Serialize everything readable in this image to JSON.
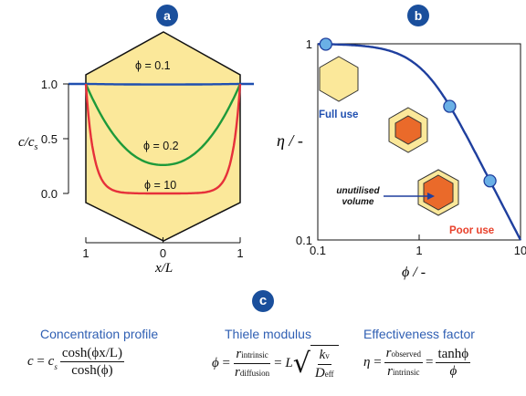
{
  "panels": {
    "a_label": "a",
    "b_label": "b",
    "c_label": "c"
  },
  "chart_data": [
    {
      "type": "line",
      "panel": "a",
      "xlabel": "x/L",
      "ylabel": "c/c_s",
      "ylabel_main": "c/c",
      "ylabel_sub": "s",
      "xlim": [
        -1,
        1
      ],
      "ylim": [
        0,
        1
      ],
      "x_ticks": [
        "1",
        "0",
        "1"
      ],
      "y_ticks": [
        "0.0",
        "0.5",
        "1.0"
      ],
      "series": [
        {
          "name": "ϕ = 0.1",
          "phi": 0.1,
          "color": "#1f4fb0"
        },
        {
          "name": "ϕ = 0.2",
          "phi": 0.2,
          "color": "#1e9a3a"
        },
        {
          "name": "ϕ = 10",
          "phi": 10,
          "color": "#e6303a"
        }
      ],
      "shape_fill": "#fbe89a"
    },
    {
      "type": "line",
      "panel": "b",
      "xlabel": "ϕ / -",
      "ylabel": "η / -",
      "x_scale": "log",
      "y_scale": "log",
      "xlim": [
        0.1,
        10
      ],
      "ylim": [
        0.1,
        1
      ],
      "x_ticks": [
        "0.1",
        "1",
        "10"
      ],
      "y_ticks": [
        "0.1",
        "1"
      ],
      "curve": "eta = tanh(phi)/phi",
      "markers": [
        {
          "phi": 0.12,
          "eta": 0.995
        },
        {
          "phi": 2.0,
          "eta": 0.48
        },
        {
          "phi": 5.0,
          "eta": 0.2
        }
      ],
      "annotations": {
        "full_use": "Full use",
        "poor_use": "Poor use",
        "unutilised_line1": "unutilised",
        "unutilised_line2": "volume"
      },
      "colors": {
        "curve": "#1f3f9e",
        "marker": "#6ab0e6",
        "hex_fill": "#fbe89a",
        "core": "#ea6a2a",
        "poor_text": "#e8402a",
        "full_text": "#1f4fb0"
      }
    }
  ],
  "equations": {
    "concentration": {
      "heading": "Concentration profile",
      "lhs": "c",
      "eq": "=",
      "c": "c",
      "c_sub": "s",
      "num": "cosh(ϕx/L)",
      "den": "cosh(ϕ)"
    },
    "thiele": {
      "heading": "Thiele modulus",
      "lhs": "ϕ",
      "eq1": "=",
      "num_r": "r",
      "num_sub": "intrinsic",
      "den_r": "r",
      "den_sub": "diffusion",
      "eq2": "=",
      "L": "L",
      "kv": "k",
      "kv_sub": "v",
      "deff": "D",
      "deff_sub": "eff"
    },
    "effectiveness": {
      "heading": "Effectiveness factor",
      "lhs": "η",
      "eq1": "=",
      "num_r": "r",
      "num_sub": "observed",
      "den_r": "r",
      "den_sub": "intrinsic",
      "eq2": "=",
      "num2": "tanhϕ",
      "den2": "ϕ"
    }
  }
}
